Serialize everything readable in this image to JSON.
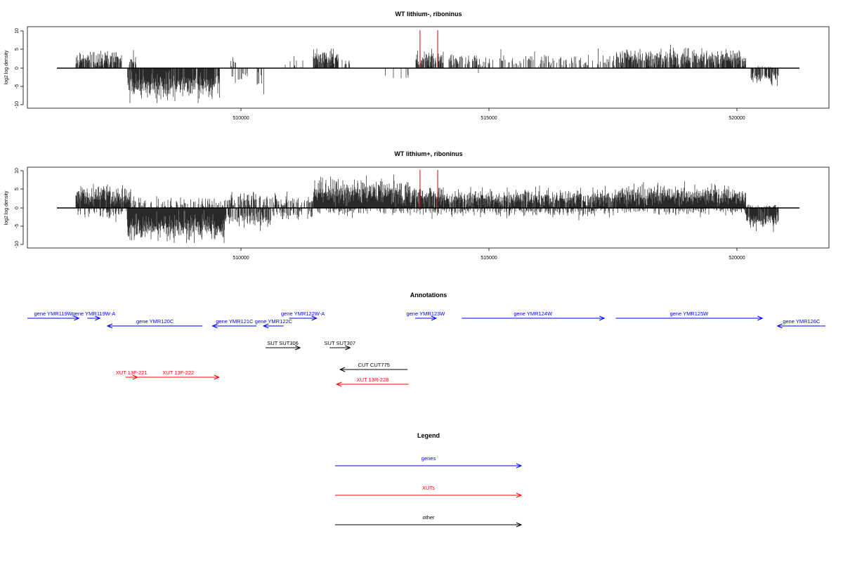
{
  "colors": {
    "gene": "#0000ff",
    "xut": "#ff0000",
    "other": "#000000",
    "marker": "#d40000",
    "bar": "#000000"
  },
  "chart_data": [
    {
      "type": "bar",
      "title": "WT lithium-, riboninus",
      "ylabel": "log2 log density",
      "xlim": [
        505800,
        521750
      ],
      "ylim": [
        -10,
        10
      ],
      "yticks": [
        "10",
        "5",
        "0",
        "-5",
        "-10"
      ],
      "xticks": [
        "510000",
        "515000",
        "520000"
      ],
      "markers": [
        513600,
        513980
      ],
      "pos_regions": [
        {
          "x": [
            506200,
            507200
          ],
          "mean": 2.5,
          "sd": 1.3,
          "density": 0.75
        },
        {
          "x": [
            507300,
            507500
          ],
          "mean": 2.0,
          "sd": 1.0,
          "density": 0.4
        },
        {
          "x": [
            509500,
            509700
          ],
          "mean": 2.0,
          "sd": 1.2,
          "density": 0.2
        },
        {
          "x": [
            510700,
            511100
          ],
          "mean": 1.5,
          "sd": 0.8,
          "density": 0.2
        },
        {
          "x": [
            511300,
            511850
          ],
          "mean": 3.2,
          "sd": 1.5,
          "density": 0.9
        },
        {
          "x": [
            511900,
            512100
          ],
          "mean": 1.5,
          "sd": 0.5,
          "density": 0.25
        },
        {
          "x": [
            513500,
            514100
          ],
          "mean": 2.8,
          "sd": 1.2,
          "density": 0.8
        },
        {
          "x": [
            514200,
            515200
          ],
          "mean": 2.0,
          "sd": 0.9,
          "density": 0.35
        },
        {
          "x": [
            515300,
            517800
          ],
          "mean": 2.0,
          "sd": 1.2,
          "density": 0.3
        },
        {
          "x": [
            517800,
            520600
          ],
          "mean": 2.8,
          "sd": 1.3,
          "density": 0.75
        },
        {
          "x": [
            520700,
            521200
          ],
          "mean": 0.3,
          "sd": 0.2,
          "density": 0.05
        }
      ],
      "neg_regions": [
        {
          "x": [
            507300,
            509300
          ],
          "mean": -5.0,
          "sd": 1.8,
          "density": 0.9
        },
        {
          "x": [
            509550,
            509900
          ],
          "mean": -2.0,
          "sd": 1.0,
          "density": 0.3
        },
        {
          "x": [
            510100,
            510300
          ],
          "mean": -3.0,
          "sd": 2.0,
          "density": 0.3
        },
        {
          "x": [
            512800,
            513400
          ],
          "mean": -2.0,
          "sd": 0.8,
          "density": 0.1
        },
        {
          "x": [
            514800,
            515000
          ],
          "mean": -1.0,
          "sd": 0.4,
          "density": 0.1
        },
        {
          "x": [
            520700,
            521300
          ],
          "mean": -2.5,
          "sd": 0.9,
          "density": 0.6
        }
      ]
    },
    {
      "type": "bar",
      "title": "WT lithium+, riboninus",
      "ylabel": "log2 log density",
      "xlim": [
        505800,
        521750
      ],
      "ylim": [
        -10,
        10
      ],
      "yticks": [
        "10",
        "5",
        "0",
        "-5",
        "-10"
      ],
      "xticks": [
        "510000",
        "515000",
        "520000"
      ],
      "markers": [
        513600,
        513980
      ],
      "pos_regions": [
        {
          "x": [
            506200,
            507400
          ],
          "mean": 3.2,
          "sd": 1.6,
          "density": 0.95
        },
        {
          "x": [
            507400,
            509400
          ],
          "mean": 1.5,
          "sd": 1.0,
          "density": 0.3
        },
        {
          "x": [
            509400,
            510200
          ],
          "mean": 2.0,
          "sd": 1.2,
          "density": 0.5
        },
        {
          "x": [
            510200,
            511300
          ],
          "mean": 1.8,
          "sd": 1.0,
          "density": 0.5
        },
        {
          "x": [
            511300,
            513500
          ],
          "mean": 4.2,
          "sd": 1.8,
          "density": 1.0
        },
        {
          "x": [
            513500,
            514100
          ],
          "mean": 3.2,
          "sd": 1.5,
          "density": 0.9
        },
        {
          "x": [
            514100,
            517800
          ],
          "mean": 2.6,
          "sd": 1.2,
          "density": 0.9
        },
        {
          "x": [
            517800,
            520600
          ],
          "mean": 3.4,
          "sd": 1.4,
          "density": 1.0
        },
        {
          "x": [
            520600,
            521300
          ],
          "mean": 0.4,
          "sd": 0.3,
          "density": 0.3
        }
      ],
      "neg_regions": [
        {
          "x": [
            506200,
            507300
          ],
          "mean": -1.2,
          "sd": 0.8,
          "density": 0.3
        },
        {
          "x": [
            507300,
            509400
          ],
          "mean": -5.5,
          "sd": 2.0,
          "density": 1.0
        },
        {
          "x": [
            509400,
            510400
          ],
          "mean": -3.0,
          "sd": 1.6,
          "density": 0.6
        },
        {
          "x": [
            510400,
            511300
          ],
          "mean": -1.5,
          "sd": 0.8,
          "density": 0.4
        },
        {
          "x": [
            511300,
            513500
          ],
          "mean": -1.0,
          "sd": 0.6,
          "density": 0.3
        },
        {
          "x": [
            513500,
            517800
          ],
          "mean": -1.0,
          "sd": 0.7,
          "density": 0.35
        },
        {
          "x": [
            517800,
            520600
          ],
          "mean": -0.8,
          "sd": 0.5,
          "density": 0.3
        },
        {
          "x": [
            520600,
            521300
          ],
          "mean": -3.2,
          "sd": 1.0,
          "density": 0.9
        }
      ]
    }
  ],
  "annotations": {
    "title": "Annotations",
    "items": [
      {
        "label": "gene YMR119W",
        "start": 505800,
        "end": 506830,
        "dir": 1,
        "row": 0,
        "kind": "gene"
      },
      {
        "label": "gene YMR119W-A",
        "start": 507000,
        "end": 507250,
        "dir": 1,
        "row": 0,
        "kind": "gene"
      },
      {
        "label": "gene YMR120C",
        "start": 507400,
        "end": 509300,
        "dir": -1,
        "row": 1,
        "kind": "gene"
      },
      {
        "label": "gene YMR121C",
        "start": 509500,
        "end": 510380,
        "dir": -1,
        "row": 1,
        "kind": "gene"
      },
      {
        "label": "gene YMR122C",
        "start": 510520,
        "end": 510920,
        "dir": -1,
        "row": 1,
        "kind": "gene"
      },
      {
        "label": "gene YMR122W-A",
        "start": 511030,
        "end": 511580,
        "dir": 1,
        "row": 0,
        "kind": "gene"
      },
      {
        "label": "gene YMR123W",
        "start": 513550,
        "end": 513970,
        "dir": 1,
        "row": 0,
        "kind": "gene"
      },
      {
        "label": "gene YMR124W",
        "start": 514480,
        "end": 517330,
        "dir": 1,
        "row": 0,
        "kind": "gene"
      },
      {
        "label": "gene YMR125W",
        "start": 517560,
        "end": 520490,
        "dir": 1,
        "row": 0,
        "kind": "gene"
      },
      {
        "label": "gene YMR126C",
        "start": 520790,
        "end": 521750,
        "dir": -1,
        "row": 1,
        "kind": "gene"
      },
      {
        "label": "SUT SUT306",
        "start": 510560,
        "end": 511250,
        "dir": 1,
        "row": 2,
        "kind": "other"
      },
      {
        "label": "SUT SUT307",
        "start": 511840,
        "end": 512250,
        "dir": 1,
        "row": 2,
        "kind": "other"
      },
      {
        "label": "CUT CUT775",
        "start": 512050,
        "end": 513400,
        "dir": -1,
        "row": 3,
        "kind": "other"
      },
      {
        "label": "XUT 13F-221",
        "start": 507760,
        "end": 508000,
        "dir": 1,
        "row": 4,
        "kind": "xut"
      },
      {
        "label": "XUT 13F-222",
        "start": 508000,
        "end": 509630,
        "dir": 1,
        "row": 4,
        "kind": "xut"
      },
      {
        "label": "XUT 13R-228",
        "start": 511980,
        "end": 513420,
        "dir": -1,
        "row": 5,
        "kind": "xut"
      }
    ]
  },
  "legend": {
    "title": "Legend",
    "items": [
      {
        "label": "genes",
        "kind": "gene"
      },
      {
        "label": "XUTs",
        "kind": "xut"
      },
      {
        "label": "other",
        "kind": "other"
      }
    ]
  }
}
